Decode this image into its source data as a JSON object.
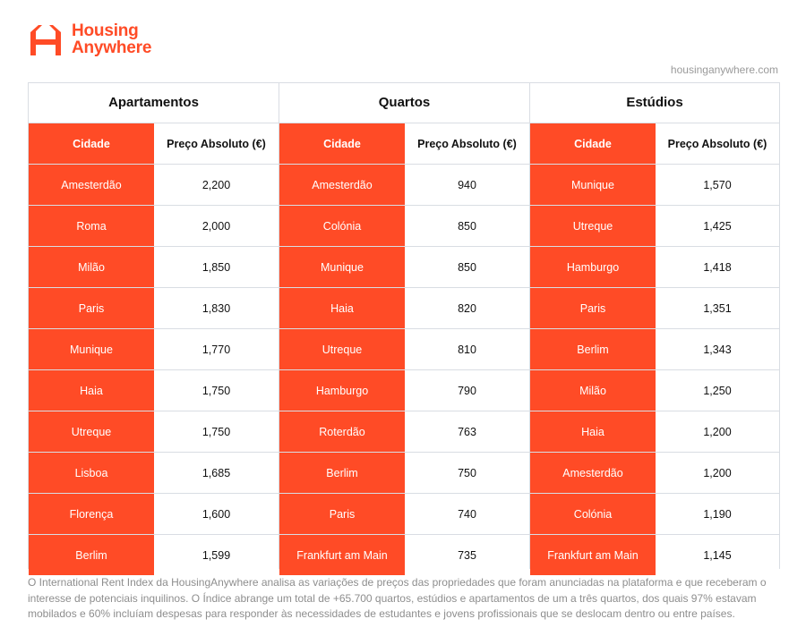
{
  "brand": {
    "line1": "Housing",
    "line2": "Anywhere",
    "color": "#ff4b26",
    "url": "housinganywhere.com"
  },
  "groups": [
    {
      "title": "Apartamentos",
      "col_city": "Cidade",
      "col_price": "Preço Absoluto (€)",
      "rows": [
        {
          "city": "Amesterdão",
          "price": "2,200"
        },
        {
          "city": "Roma",
          "price": "2,000"
        },
        {
          "city": "Milão",
          "price": "1,850"
        },
        {
          "city": "Paris",
          "price": "1,830"
        },
        {
          "city": "Munique",
          "price": "1,770"
        },
        {
          "city": "Haia",
          "price": "1,750"
        },
        {
          "city": "Utreque",
          "price": "1,750"
        },
        {
          "city": "Lisboa",
          "price": "1,685"
        },
        {
          "city": "Florença",
          "price": "1,600"
        },
        {
          "city": "Berlim",
          "price": "1,599"
        }
      ]
    },
    {
      "title": "Quartos",
      "col_city": "Cidade",
      "col_price": "Preço Absoluto (€)",
      "rows": [
        {
          "city": "Amesterdão",
          "price": "940"
        },
        {
          "city": "Colónia",
          "price": "850"
        },
        {
          "city": "Munique",
          "price": "850"
        },
        {
          "city": "Haia",
          "price": "820"
        },
        {
          "city": "Utreque",
          "price": "810"
        },
        {
          "city": "Hamburgo",
          "price": "790"
        },
        {
          "city": "Roterdão",
          "price": "763"
        },
        {
          "city": "Berlim",
          "price": "750"
        },
        {
          "city": "Paris",
          "price": "740"
        },
        {
          "city": "Frankfurt am Main",
          "price": "735"
        }
      ]
    },
    {
      "title": "Estúdios",
      "col_city": "Cidade",
      "col_price": "Preço Absoluto (€)",
      "rows": [
        {
          "city": "Munique",
          "price": "1,570"
        },
        {
          "city": "Utreque",
          "price": "1,425"
        },
        {
          "city": "Hamburgo",
          "price": "1,418"
        },
        {
          "city": "Paris",
          "price": "1,351"
        },
        {
          "city": "Berlim",
          "price": "1,343"
        },
        {
          "city": "Milão",
          "price": "1,250"
        },
        {
          "city": "Haia",
          "price": "1,200"
        },
        {
          "city": "Amesterdão",
          "price": "1,200"
        },
        {
          "city": "Colónia",
          "price": "1,190"
        },
        {
          "city": "Frankfurt am Main",
          "price": "1,145"
        }
      ]
    }
  ],
  "footnote": "O International Rent Index da HousingAnywhere analisa as variações de preços das propriedades que foram anunciadas na plataforma e que receberam o interesse de potenciais inquilinos. O Índice abrange um total de +65.700 quartos, estúdios e apartamentos de um a três quartos, dos quais 97% estavam mobilados e 60% incluíam despesas para responder às necessidades de estudantes e jovens profissionais que se deslocam dentro ou entre países."
}
